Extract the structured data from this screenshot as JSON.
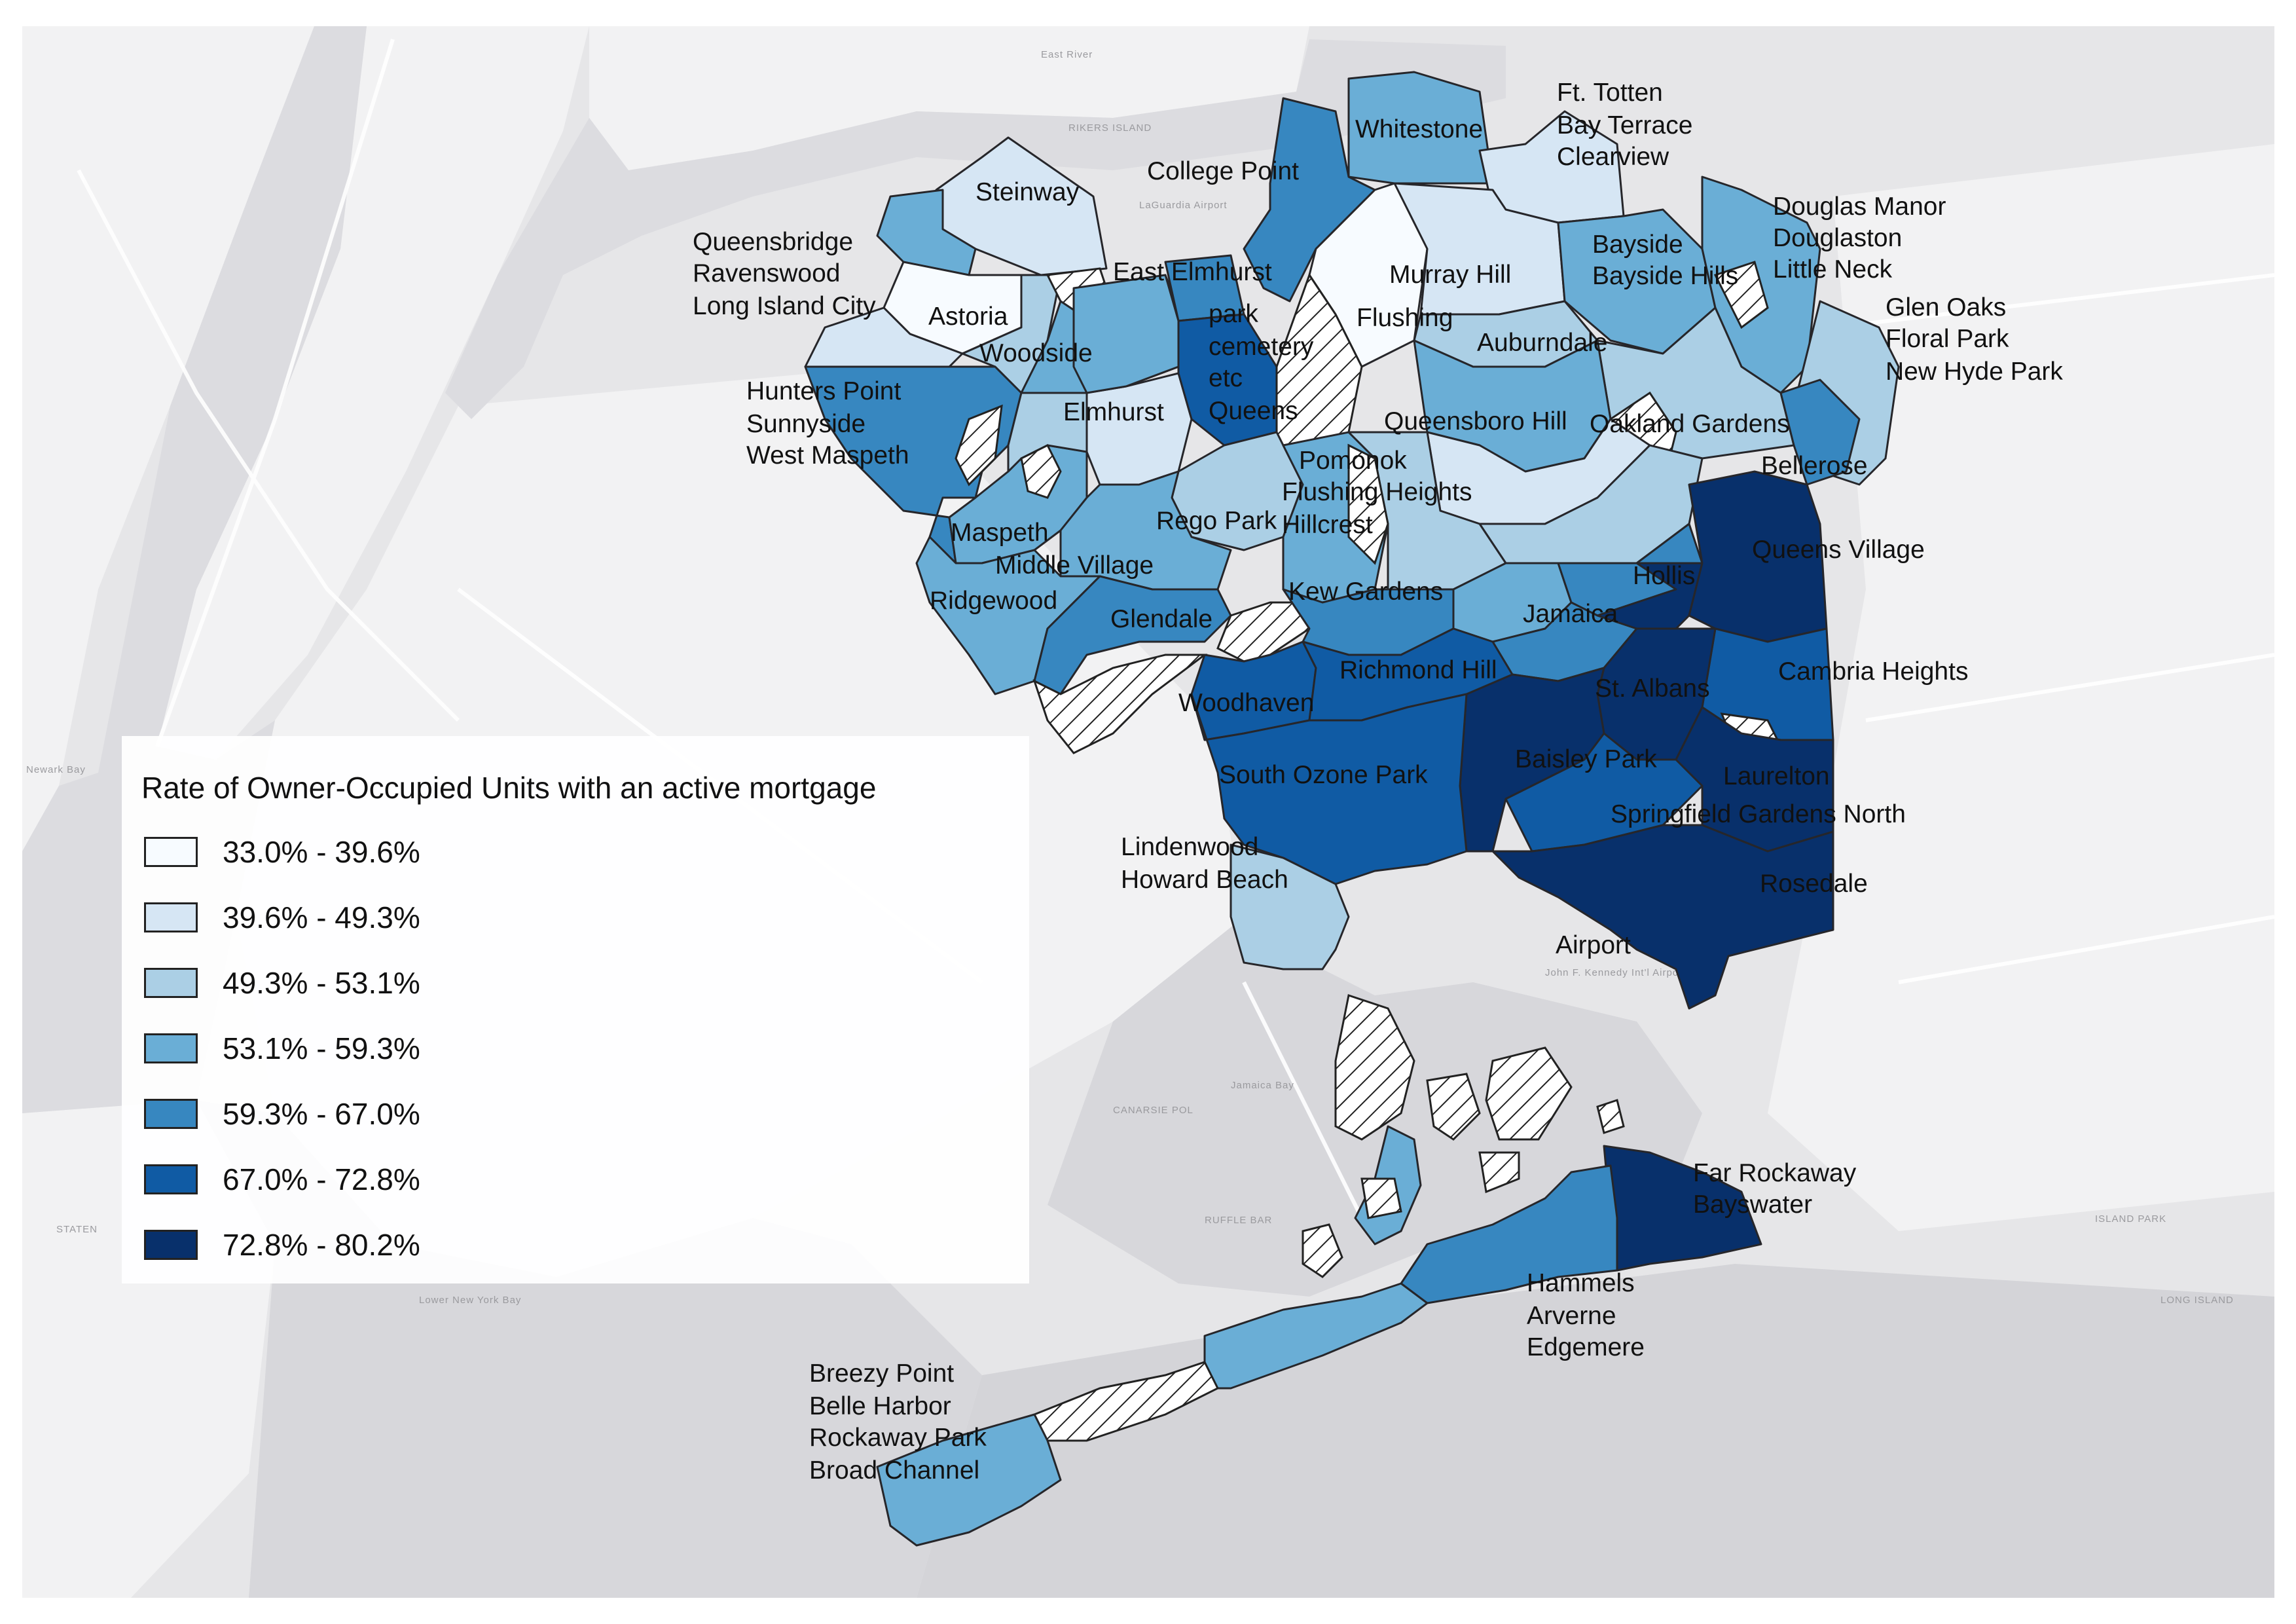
{
  "legend": {
    "title": "Rate of Owner-Occupied Units with an active mortgage",
    "classes": [
      {
        "label": "33.0% - 39.6%",
        "color": "#f7fbff"
      },
      {
        "label": "39.6% - 49.3%",
        "color": "#d6e6f4"
      },
      {
        "label": "49.3% - 53.1%",
        "color": "#abcfe5"
      },
      {
        "label": "53.1% - 59.3%",
        "color": "#6aaed6"
      },
      {
        "label": "59.3% - 67.0%",
        "color": "#3787c0"
      },
      {
        "label": "67.0% - 72.8%",
        "color": "#105ba4"
      },
      {
        "label": "72.8% - 80.2%",
        "color": "#08306b"
      }
    ]
  },
  "basemap_labels": {
    "rikers": "RIKERS ISLAND",
    "east_river": "East River",
    "laguardia": "LaGuardia Airport",
    "jamaica_bay": "Jamaica Bay",
    "canarsie": "CANARSIE POL",
    "ruffle": "RUFFLE BAR",
    "jfk": "John F. Kennedy Int'l Airport",
    "lower_ny_bay": "Lower New York Bay",
    "staten": "STATEN",
    "long_island": "LONG ISLAND",
    "island_park": "ISLAND PARK",
    "newark_bay": "Newark Bay"
  },
  "neighborhoods": {
    "steinway": "Steinway",
    "queensbridge": "Queensbridge",
    "ravenswood": "Ravenswood",
    "lic": "Long Island City",
    "astoria": "Astoria",
    "college_point": "College Point",
    "whitestone": "Whitestone",
    "ft_totten": "Ft. Totten",
    "bay_terrace": "Bay Terrace",
    "clearview": "Clearview",
    "douglas_manor": "Douglas Manor",
    "douglaston": "Douglaston",
    "little_neck": "Little Neck",
    "east_elmhurst": "East Elmhurst",
    "murray_hill": "Murray Hill",
    "flushing": "Flushing",
    "bayside": "Bayside",
    "bayside_hills": "Bayside Hills",
    "glen_oaks": "Glen Oaks",
    "floral_park": "Floral Park",
    "new_hyde_park": "New Hyde Park",
    "woodside": "Woodside",
    "park": "park",
    "cemetery": "cemetery",
    "etc": "etc",
    "queens": "Queens",
    "auburndale": "Auburndale",
    "hunters_point": "Hunters Point",
    "sunnyside": "Sunnyside",
    "west_maspeth": "West Maspeth",
    "elmhurst": "Elmhurst",
    "queensboro_hill": "Queensboro Hill",
    "oakland_gardens": "Oakland Gardens",
    "bellerose": "Bellerose",
    "pomonok": "Pomonok",
    "flushing_heights": "Flushing Heights",
    "hillcrest": "Hillcrest",
    "rego_park": "Rego Park",
    "maspeth": "Maspeth",
    "middle_village": "Middle Village",
    "queens_village": "Queens Village",
    "hollis": "Hollis",
    "ridgewood": "Ridgewood",
    "kew_gardens": "Kew Gardens",
    "jamaica": "Jamaica",
    "glendale": "Glendale",
    "richmond_hill": "Richmond Hill",
    "cambria_heights": "Cambria Heights",
    "st_albans": "St. Albans",
    "woodhaven": "Woodhaven",
    "baisley_park": "Baisley Park",
    "laurelton": "Laurelton",
    "south_ozone_park": "South Ozone Park",
    "springfield_gardens_north": "Springfield Gardens North",
    "lindenwood": "Lindenwood",
    "howard_beach": "Howard Beach",
    "rosedale": "Rosedale",
    "airport": "Airport",
    "far_rockaway": "Far Rockaway",
    "bayswater": "Bayswater",
    "hammels": "Hammels",
    "arverne": "Arverne",
    "edgemere": "Edgemere",
    "breezy_point": "Breezy Point",
    "belle_harbor": "Belle Harbor",
    "rockaway_park": "Rockaway Park",
    "broad_channel": "Broad Channel"
  }
}
